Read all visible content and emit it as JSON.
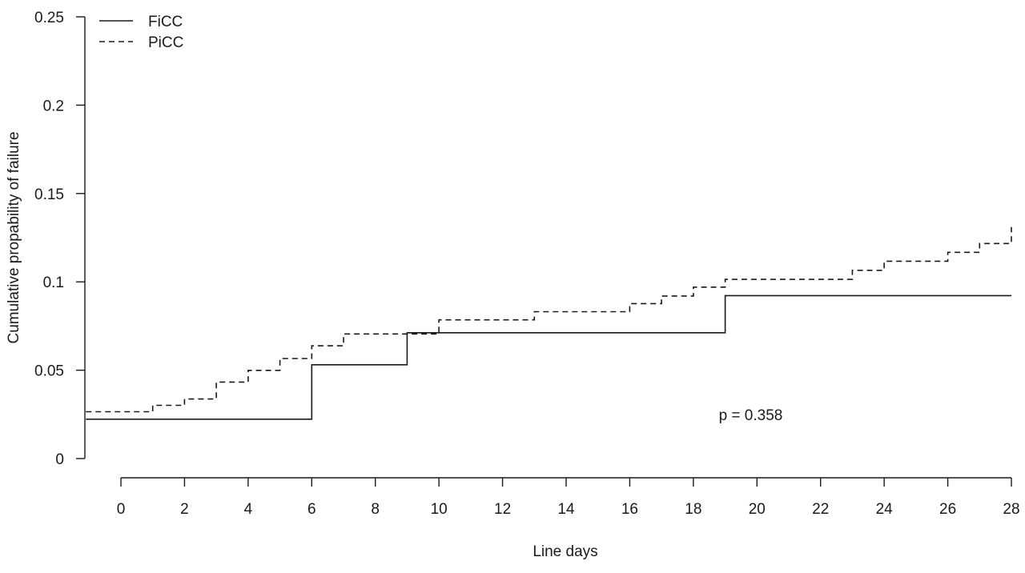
{
  "chart_data": {
    "type": "line",
    "title": "",
    "xlabel": "Line days",
    "ylabel": "Cumulative propability of failure",
    "xlim": [
      0,
      28
    ],
    "ylim": [
      0,
      0.25
    ],
    "x_ticks": [
      0,
      2,
      4,
      6,
      8,
      10,
      12,
      14,
      16,
      18,
      20,
      22,
      24,
      26,
      28
    ],
    "x_tick_labels": [
      "0",
      "2",
      "4",
      "6",
      "8",
      "10",
      "12",
      "14",
      "16",
      "18",
      "20",
      "22",
      "24",
      "26",
      "28"
    ],
    "y_ticks": [
      0,
      0.05,
      0.1,
      0.15,
      0.2,
      0.25
    ],
    "y_tick_labels": [
      "0",
      "0.05",
      "0.1",
      "0.15",
      "0.2",
      "0.25"
    ],
    "grid": false,
    "legend_position": "top-left",
    "step": true,
    "series": [
      {
        "name": "FiCC",
        "line_style": "solid",
        "color": "#1a1a1a",
        "x": [
          -1.1,
          6,
          9,
          19,
          28
        ],
        "y": [
          0.0223,
          0.0531,
          0.0712,
          0.0922,
          0.0922
        ]
      },
      {
        "name": "PiCC",
        "line_style": "dashed",
        "color": "#1a1a1a",
        "x": [
          -1.1,
          1,
          2,
          3,
          4,
          5,
          6,
          7,
          10,
          13,
          16,
          17,
          18,
          19,
          23,
          24,
          26,
          27,
          28
        ],
        "y": [
          0.0265,
          0.0301,
          0.0337,
          0.0433,
          0.0499,
          0.0566,
          0.0638,
          0.0705,
          0.0785,
          0.0831,
          0.0877,
          0.092,
          0.097,
          0.1014,
          0.1065,
          0.1117,
          0.1167,
          0.1217,
          0.131
        ]
      }
    ],
    "annotations": [
      {
        "text": "p = 0.358",
        "x": 19,
        "y": 0.025
      }
    ]
  }
}
